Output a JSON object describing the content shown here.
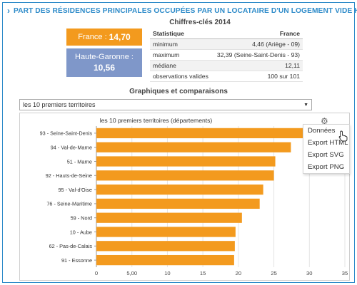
{
  "header": {
    "icon": "chevron-right-icon",
    "title": "PART DES RÉSIDENCES PRINCIPALES OCCUPÉES PAR UN LOCATAIRE D'UN LOGEMENT VIDE HLM",
    "color": "#2e8bc9"
  },
  "france_box": {
    "label": "France :",
    "value": "14,70",
    "color": "#f39a1e"
  },
  "hg_box": {
    "label": "Haute-Garonne :",
    "value": "10,56",
    "color": "#7f97c9"
  },
  "key_figures": {
    "title": "Chiffres-clés 2014",
    "columns": [
      "Statistique",
      "France"
    ],
    "rows": [
      [
        "minimum",
        "4,46 (Ariège - 09)"
      ],
      [
        "maximum",
        "32,39 (Seine-Saint-Denis - 93)"
      ],
      [
        "médiane",
        "12,11"
      ],
      [
        "observations valides",
        "100 sur 101"
      ]
    ]
  },
  "graphs_section": {
    "title": "Graphiques et comparaisons",
    "select_value": "les 10 premiers territoires"
  },
  "context_menu": {
    "items": [
      "Données",
      "Export HTML",
      "Export SVG",
      "Export PNG"
    ]
  },
  "chart_data": {
    "type": "bar",
    "orientation": "horizontal",
    "title": "les 10 premiers territoires (départements)",
    "categories": [
      "93 - Seine-Saint-Denis",
      "94 - Val-de-Marne",
      "51 - Marne",
      "92 - Hauts-de-Seine",
      "95 - Val-d'Oise",
      "76 - Seine-Maritime",
      "59 - Nord",
      "10 - Aube",
      "62 - Pas-de-Calais",
      "91 - Essonne"
    ],
    "values": [
      32.39,
      27.4,
      25.2,
      25.0,
      23.5,
      23.0,
      20.5,
      19.6,
      19.5,
      19.4
    ],
    "xlim": [
      0,
      35
    ],
    "xticks": [
      "0",
      "5,00",
      "10",
      "15",
      "20",
      "25",
      "30",
      "35"
    ],
    "grid": true,
    "bar_color": "#f39a1e"
  }
}
